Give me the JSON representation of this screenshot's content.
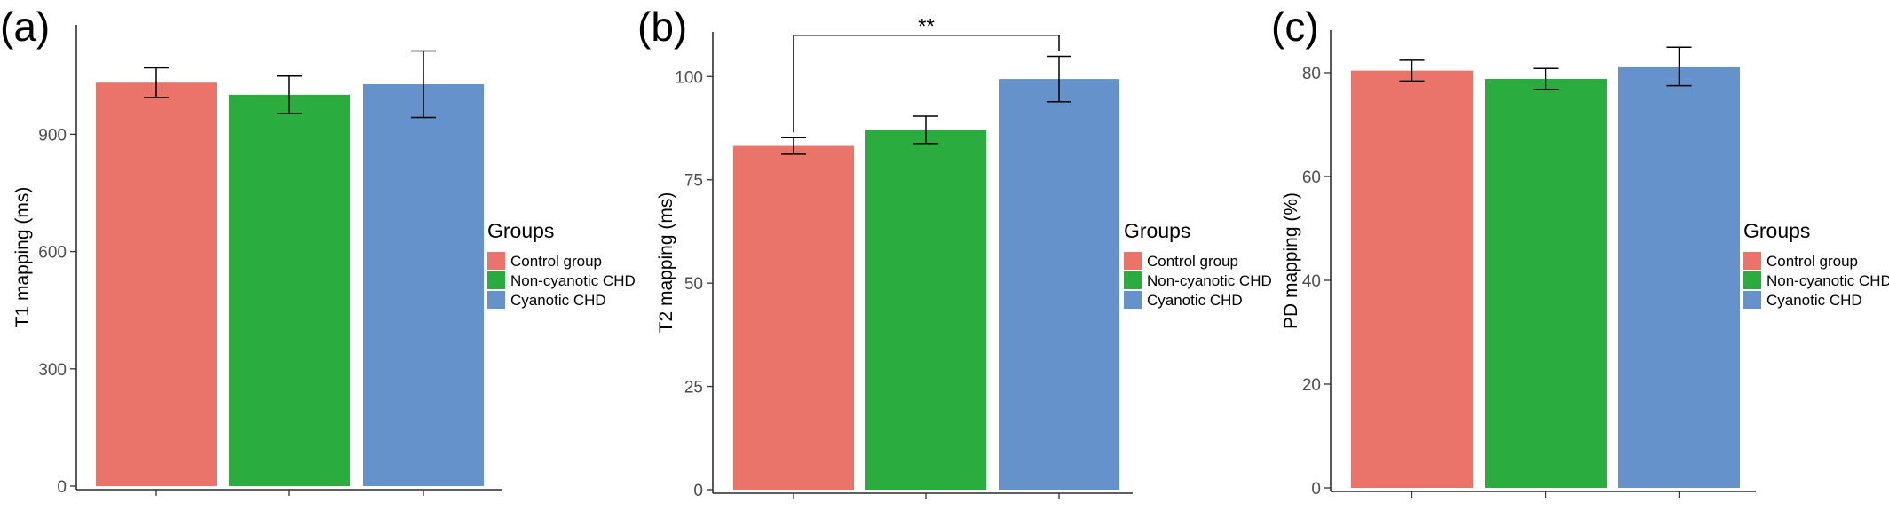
{
  "colors": {
    "control": "#EA746A",
    "noncyanotic": "#2AAD3E",
    "cyanotic": "#6592CB"
  },
  "legend": {
    "title": "Groups",
    "items": [
      "Control group",
      "Non-cyanotic CHD",
      "Cyanotic CHD"
    ]
  },
  "chart_data": [
    {
      "type": "bar",
      "panel": "(a)",
      "ylabel": "T1 mapping (ms)",
      "categories": [
        "Control group",
        "Non-cyanotic CHD",
        "Cyanotic CHD"
      ],
      "values": [
        1032,
        1001,
        1028
      ],
      "errors": [
        38,
        48,
        85
      ],
      "yticks": [
        0,
        300,
        600,
        900
      ],
      "ylim": [
        0,
        1180
      ],
      "legend_position": "right",
      "significance": null
    },
    {
      "type": "bar",
      "panel": "(b)",
      "ylabel": "T2 mapping (ms)",
      "categories": [
        "Control group",
        "Non-cyanotic CHD",
        "Cyanotic CHD"
      ],
      "values": [
        83.2,
        87.1,
        99.4
      ],
      "errors": [
        2.0,
        3.3,
        5.5
      ],
      "yticks": [
        0,
        25,
        50,
        75,
        100
      ],
      "ylim": [
        0,
        110.8
      ],
      "legend_position": "right",
      "significance": {
        "from": 0,
        "to": 2,
        "label": "**",
        "y": 110.0
      }
    },
    {
      "type": "bar",
      "panel": "(c)",
      "ylabel": "PD mapping (%)",
      "categories": [
        "Control group",
        "Non-cyanotic CHD",
        "Cyanotic CHD"
      ],
      "values": [
        80.4,
        78.8,
        81.2
      ],
      "errors": [
        2.0,
        2.0,
        3.7
      ],
      "yticks": [
        0,
        20,
        40,
        60,
        80
      ],
      "ylim": [
        0,
        88.2
      ],
      "legend_position": "right",
      "significance": null
    }
  ]
}
